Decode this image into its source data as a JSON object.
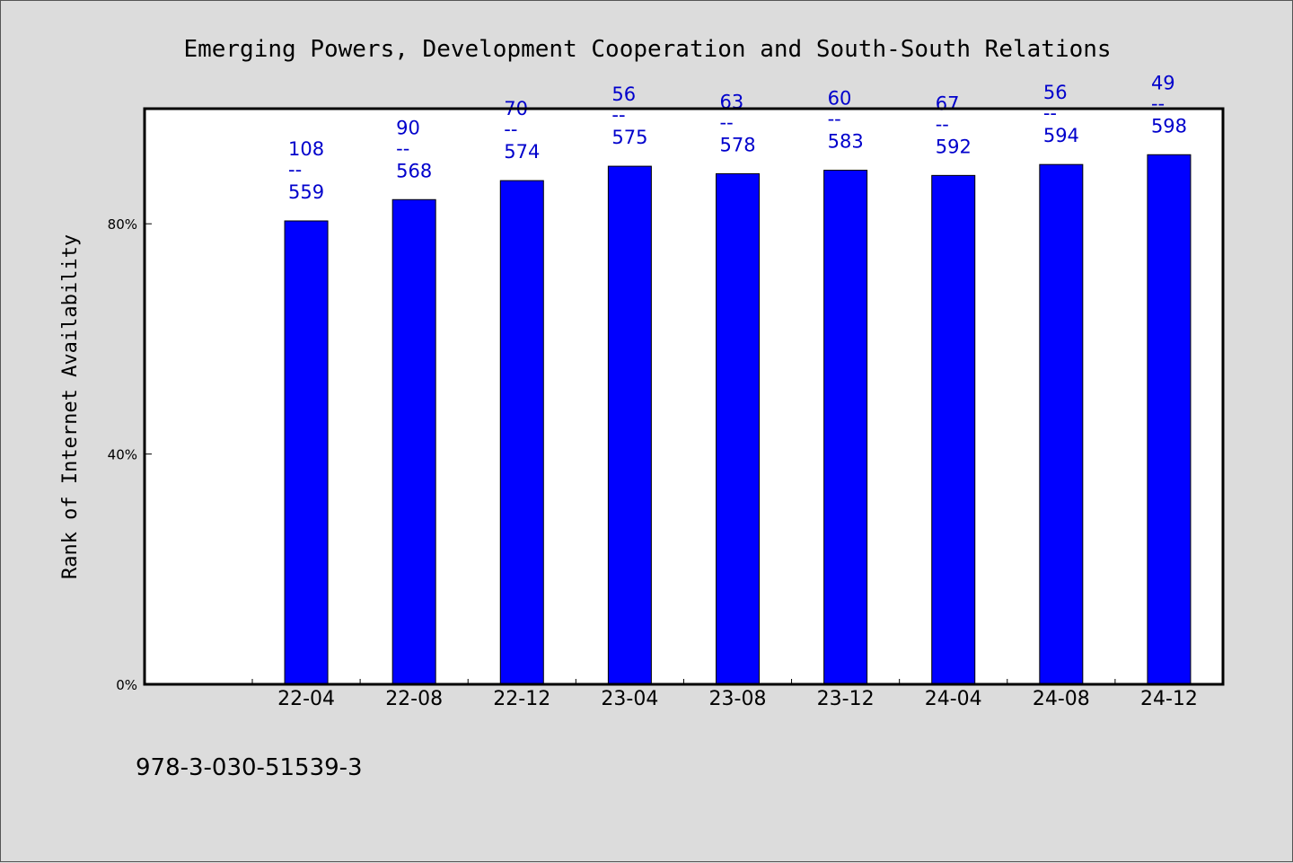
{
  "chart_data": {
    "type": "bar",
    "title": "Emerging Powers, Development Cooperation and South-South Relations",
    "ylabel": "Rank of Internet Availability",
    "xlabel": "",
    "categories": [
      "22-04",
      "22-08",
      "22-12",
      "23-04",
      "23-08",
      "23-12",
      "24-04",
      "24-08",
      "24-12"
    ],
    "values": [
      80.5,
      84.2,
      87.5,
      90.0,
      88.7,
      89.3,
      88.4,
      90.3,
      92.0
    ],
    "value_unit": "%",
    "ylim": [
      0,
      100
    ],
    "yticks": [
      {
        "value": 0,
        "label": "0%"
      },
      {
        "value": 40,
        "label": "40%"
      },
      {
        "value": 80,
        "label": "80%"
      }
    ],
    "data_labels": [
      {
        "top": "108",
        "sep": "--",
        "bottom": "559"
      },
      {
        "top": "90",
        "sep": "--",
        "bottom": "568"
      },
      {
        "top": "70",
        "sep": "--",
        "bottom": "574"
      },
      {
        "top": "56",
        "sep": "--",
        "bottom": "575"
      },
      {
        "top": "63",
        "sep": "--",
        "bottom": "578"
      },
      {
        "top": "60",
        "sep": "--",
        "bottom": "583"
      },
      {
        "top": "67",
        "sep": "--",
        "bottom": "592"
      },
      {
        "top": "56",
        "sep": "--",
        "bottom": "594"
      },
      {
        "top": "49",
        "sep": "--",
        "bottom": "598"
      }
    ],
    "grid": false,
    "legend": "none",
    "colors": {
      "bar": "#0000ff",
      "label": "#0000cc",
      "background": "#dcdcdc",
      "plot_background": "#ffffff"
    }
  },
  "footer": {
    "isbn": "978-3-030-51539-3"
  }
}
